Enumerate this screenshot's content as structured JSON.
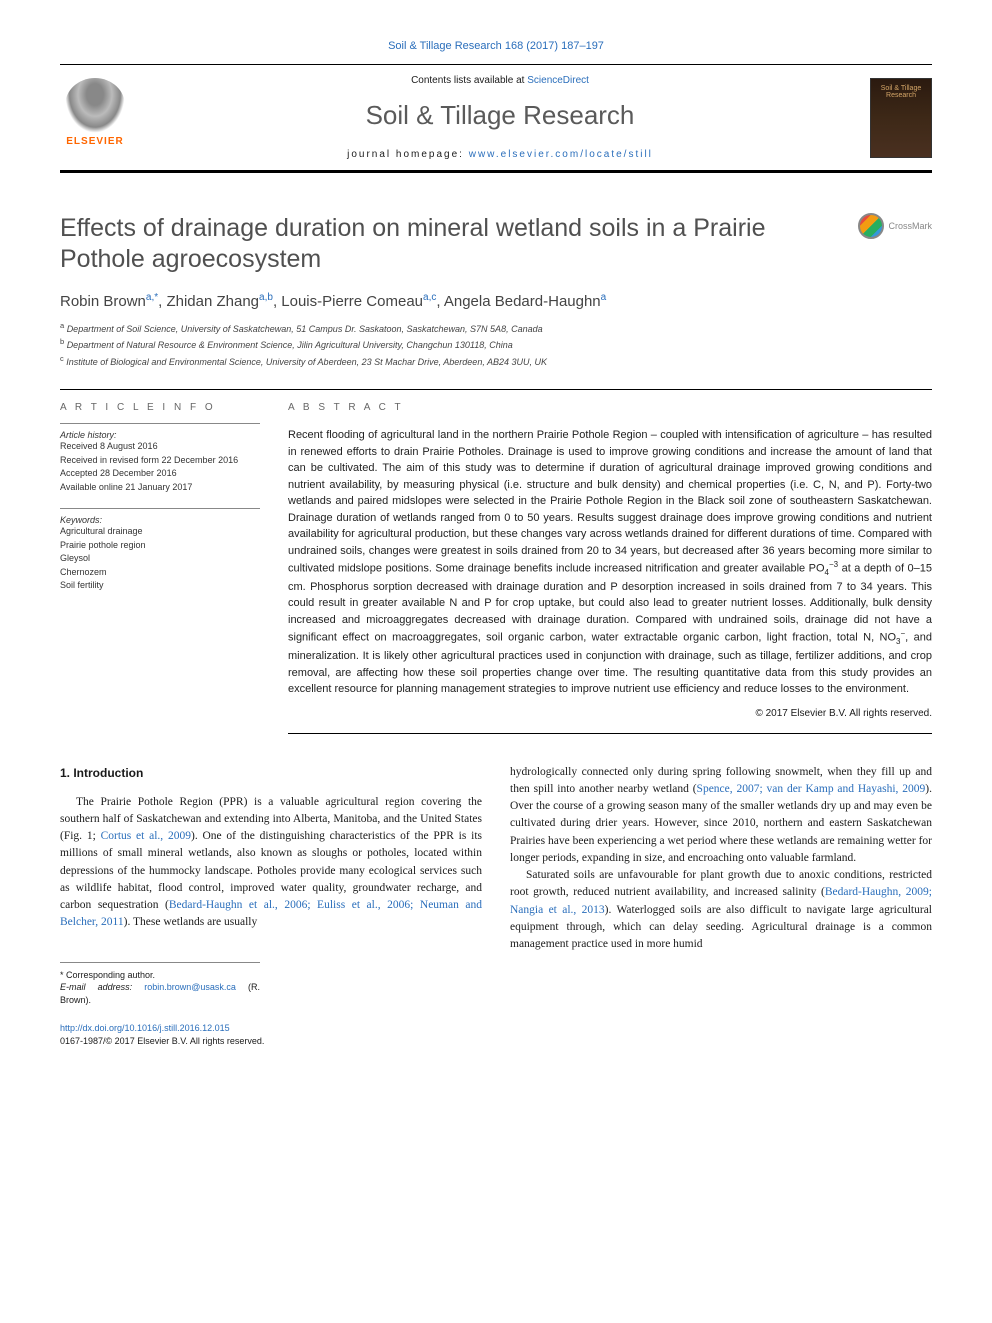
{
  "top_citation": "Soil & Tillage Research 168 (2017) 187–197",
  "header": {
    "contents_prefix": "Contents lists available at ",
    "contents_link": "ScienceDirect",
    "journal_title": "Soil & Tillage Research",
    "homepage_prefix": "journal homepage: ",
    "homepage_link": "www.elsevier.com/locate/still",
    "elsevier_label": "ELSEVIER",
    "cover_line1": "Soil & Tillage",
    "cover_line2": "Research"
  },
  "crossmark_label": "CrossMark",
  "article": {
    "title": "Effects of drainage duration on mineral wetland soils in a Prairie Pothole agroecosystem",
    "authors_html": "Robin Brown<sup>a,*</sup>, Zhidan Zhang<sup>a,b</sup>, Louis-Pierre Comeau<sup>a,c</sup>, Angela Bedard-Haughn<sup>a</sup>",
    "affiliations": {
      "a": "Department of Soil Science, University of Saskatchewan, 51 Campus Dr. Saskatoon, Saskatchewan, S7N 5A8, Canada",
      "b": "Department of Natural Resource & Environment Science, Jilin Agricultural University, Changchun 130118, China",
      "c": "Institute of Biological and Environmental Science, University of Aberdeen, 23 St Machar Drive, Aberdeen, AB24 3UU, UK"
    }
  },
  "article_info": {
    "heading": "A R T I C L E   I N F O",
    "history_label": "Article history:",
    "history": [
      "Received 8 August 2016",
      "Received in revised form 22 December 2016",
      "Accepted 28 December 2016",
      "Available online 21 January 2017"
    ],
    "keywords_label": "Keywords:",
    "keywords": [
      "Agricultural drainage",
      "Prairie pothole region",
      "Gleysol",
      "Chernozem",
      "Soil fertility"
    ]
  },
  "abstract": {
    "heading": "A B S T R A C T",
    "text": "Recent flooding of agricultural land in the northern Prairie Pothole Region – coupled with intensification of agriculture – has resulted in renewed efforts to drain Prairie Potholes. Drainage is used to improve growing conditions and increase the amount of land that can be cultivated. The aim of this study was to determine if duration of agricultural drainage improved growing conditions and nutrient availability, by measuring physical (i.e. structure and bulk density) and chemical properties (i.e. C, N, and P). Forty-two wetlands and paired midslopes were selected in the Prairie Pothole Region in the Black soil zone of southeastern Saskatchewan. Drainage duration of wetlands ranged from 0 to 50 years. Results suggest drainage does improve growing conditions and nutrient availability for agricultural production, but these changes vary across wetlands drained for different durations of time. Compared with undrained soils, changes were greatest in soils drained from 20 to 34 years, but decreased after 36 years becoming more similar to cultivated midslope positions. Some drainage benefits include increased nitrification and greater available PO4−3 at a depth of 0–15 cm. Phosphorus sorption decreased with drainage duration and P desorption increased in soils drained from 7 to 34 years. This could result in greater available N and P for crop uptake, but could also lead to greater nutrient losses. Additionally, bulk density increased and microaggregates decreased with drainage duration. Compared with undrained soils, drainage did not have a significant effect on macroaggregates, soil organic carbon, water extractable organic carbon, light fraction, total N, NO3−, and mineralization. It is likely other agricultural practices used in conjunction with drainage, such as tillage, fertilizer additions, and crop removal, are affecting how these soil properties change over time. The resulting quantitative data from this study provides an excellent resource for planning management strategies to improve nutrient use efficiency and reduce losses to the environment.",
    "copyright": "© 2017 Elsevier B.V. All rights reserved."
  },
  "intro": {
    "heading": "1. Introduction",
    "col1_p1_pre": "The Prairie Pothole Region (PPR) is a valuable agricultural region covering the southern half of Saskatchewan and extending into Alberta, Manitoba, and the United States (Fig. 1; ",
    "col1_p1_link1": "Cortus et al., 2009",
    "col1_p1_mid1": "). One of the distinguishing characteristics of the PPR is its millions of small mineral wetlands, also known as sloughs or potholes, located within depressions of the hummocky landscape. Potholes provide many ecological services such as wildlife habitat, flood control, improved water quality, groundwater recharge, and carbon sequestration (",
    "col1_p1_link2": "Bedard-Haughn et al., 2006; Euliss et al., 2006; Neuman and Belcher, 2011",
    "col1_p1_post": "). These wetlands are usually",
    "col2_p1_pre": "hydrologically connected only during spring following snowmelt, when they fill up and then spill into another nearby wetland (",
    "col2_p1_link1": "Spence, 2007; van der Kamp and Hayashi, 2009",
    "col2_p1_post": "). Over the course of a growing season many of the smaller wetlands dry up and may even be cultivated during drier years. However, since 2010, northern and eastern Saskatchewan Prairies have been experiencing a wet period where these wetlands are remaining wetter for longer periods, expanding in size, and encroaching onto valuable farmland.",
    "col2_p2_pre": "Saturated soils are unfavourable for plant growth due to anoxic conditions, restricted root growth, reduced nutrient availability, and increased salinity (",
    "col2_p2_link1": "Bedard-Haughn, 2009; Nangia et al., 2013",
    "col2_p2_post": "). Waterlogged soils are also difficult to navigate large agricultural equipment through, which can delay seeding. Agricultural drainage is a common management practice used in more humid"
  },
  "footer": {
    "corresponding_label": "* Corresponding author.",
    "email_label": "E-mail address: ",
    "email": "robin.brown@usask.ca",
    "email_suffix": " (R. Brown).",
    "doi_link": "http://dx.doi.org/10.1016/j.still.2016.12.015",
    "issn_line": "0167-1987/© 2017 Elsevier B.V. All rights reserved."
  },
  "colors": {
    "link": "#2a6ebb",
    "elsevier_orange": "#ff6600",
    "text": "#1a1a1a",
    "heading_gray": "#505050"
  }
}
